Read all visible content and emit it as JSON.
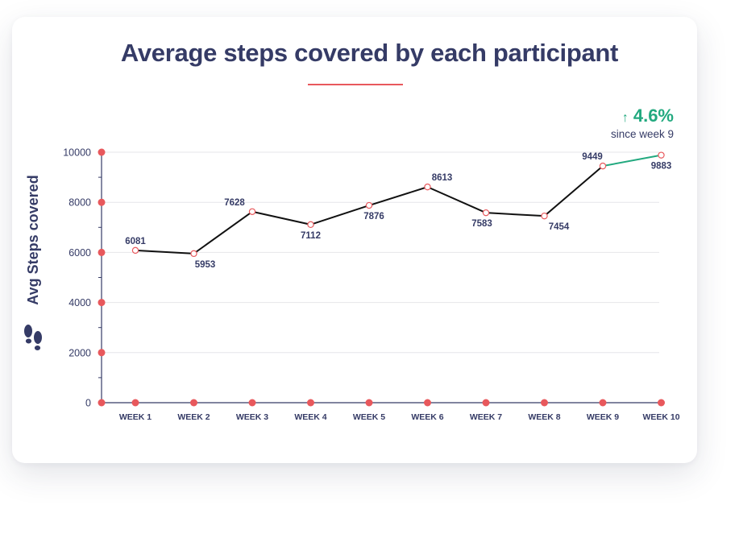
{
  "title": "Average steps covered by each participant",
  "summary": {
    "delta": "4.6%",
    "caption": "since week 9",
    "arrow_icon": "arrow-up-icon",
    "color": "#22a97f"
  },
  "colors": {
    "title": "#353b66",
    "accent": "#e8585c",
    "line": "#111111",
    "highlight": "#22a97f"
  },
  "chart_data": {
    "type": "line",
    "categories": [
      "WEEK 1",
      "WEEK 2",
      "WEEK 3",
      "WEEK 4",
      "WEEK 5",
      "WEEK 6",
      "WEEK 7",
      "WEEK 8",
      "WEEK 9",
      "WEEK 10"
    ],
    "values": [
      6081,
      5953,
      7628,
      7112,
      7876,
      8613,
      7583,
      7454,
      9449,
      9883
    ],
    "data_labels": [
      "6081",
      "5953",
      "7628",
      "7112",
      "7876",
      "8613",
      "7583",
      "7454",
      "9449",
      "9883"
    ],
    "ylabel": "Avg Steps covered",
    "ylabel_icon": "footprints-icon",
    "ylim": [
      0,
      10000
    ],
    "yticks": [
      0,
      2000,
      4000,
      6000,
      8000,
      10000
    ],
    "grid": true,
    "highlight_segment": [
      8,
      9
    ]
  }
}
